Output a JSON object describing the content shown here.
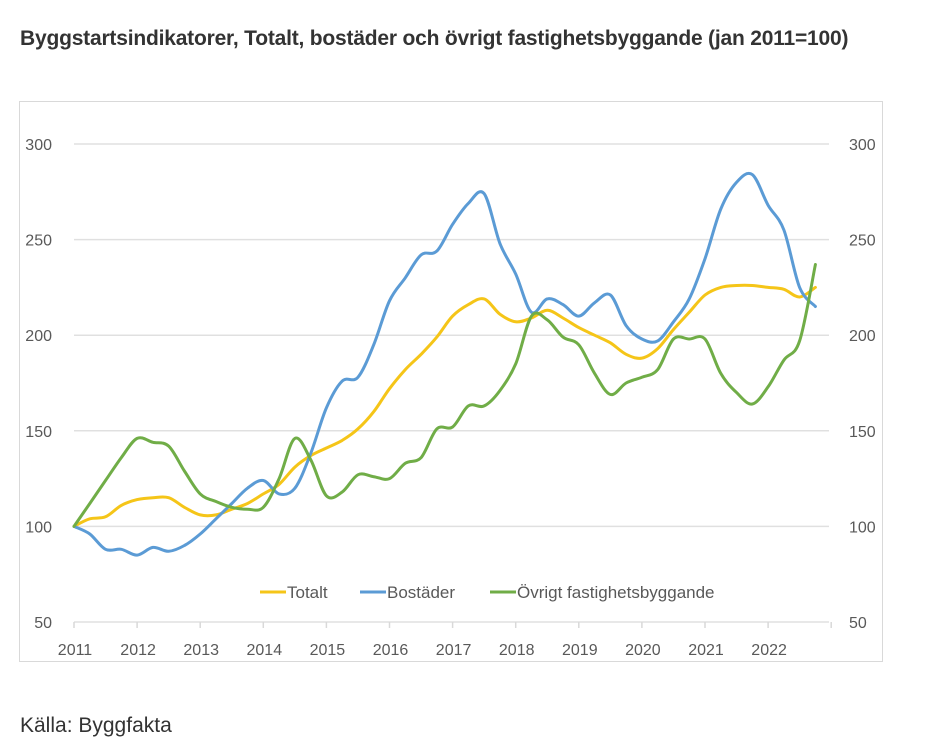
{
  "page": {
    "title": "Byggstartsindikatorer, Totalt, bostäder och övrigt fastighetsbyggande (jan 2011=100)",
    "source": "Källa: Byggfakta"
  },
  "chart_data": {
    "type": "line",
    "title": "Byggstartsindikatorer, Totalt, bostäder och övrigt fastighetsbyggande (jan 2011=100)",
    "xlabel": "",
    "ylabel": "",
    "x_tick_labels": [
      "2011",
      "2012",
      "2013",
      "2014",
      "2015",
      "2016",
      "2017",
      "2018",
      "2019",
      "2020",
      "2021",
      "2022"
    ],
    "y_tick_labels_left": [
      "50",
      "100",
      "150",
      "200",
      "250",
      "300"
    ],
    "y_tick_labels_right": [
      "50",
      "100",
      "150",
      "200",
      "250",
      "300"
    ],
    "y_ticks": [
      50,
      100,
      150,
      200,
      250,
      300
    ],
    "xlim": [
      2011,
      2023
    ],
    "ylim": [
      50,
      300
    ],
    "grid": true,
    "legend_position": "bottom-inside",
    "x": [
      2011.0,
      2011.25,
      2011.5,
      2011.75,
      2012.0,
      2012.25,
      2012.5,
      2012.75,
      2013.0,
      2013.25,
      2013.5,
      2013.75,
      2014.0,
      2014.25,
      2014.5,
      2014.75,
      2015.0,
      2015.25,
      2015.5,
      2015.75,
      2016.0,
      2016.25,
      2016.5,
      2016.75,
      2017.0,
      2017.25,
      2017.5,
      2017.75,
      2018.0,
      2018.25,
      2018.5,
      2018.75,
      2019.0,
      2019.25,
      2019.5,
      2019.75,
      2020.0,
      2020.25,
      2020.5,
      2020.75,
      2021.0,
      2021.25,
      2021.5,
      2021.75,
      2022.0,
      2022.25,
      2022.5,
      2022.75
    ],
    "series": [
      {
        "name": "Totalt",
        "color": "#F5C518",
        "values": [
          100,
          104,
          105,
          111,
          114,
          115,
          115,
          110,
          106,
          106,
          109,
          112,
          117,
          122,
          131,
          137,
          141,
          145,
          151,
          160,
          172,
          182,
          190,
          199,
          210,
          216,
          219,
          211,
          207,
          209,
          213,
          209,
          204,
          200,
          196,
          190,
          188,
          193,
          203,
          212,
          221,
          225,
          226,
          226,
          225,
          224,
          220,
          225
        ]
      },
      {
        "name": "Bostäder",
        "color": "#5B9BD5",
        "values": [
          100,
          96,
          88,
          88,
          85,
          89,
          87,
          90,
          96,
          104,
          112,
          120,
          124,
          117,
          120,
          138,
          162,
          176,
          178,
          195,
          218,
          230,
          242,
          244,
          258,
          269,
          274,
          248,
          232,
          212,
          219,
          216,
          210,
          217,
          221,
          205,
          198,
          197,
          207,
          219,
          240,
          266,
          280,
          284,
          268,
          255,
          225,
          215
        ]
      },
      {
        "name": "Övrigt fastighetsbyggande",
        "color": "#70AD47",
        "values": [
          100,
          112,
          124,
          136,
          146,
          144,
          142,
          129,
          117,
          113,
          110,
          109,
          110,
          125,
          146,
          135,
          116,
          118,
          127,
          126,
          125,
          133,
          136,
          151,
          152,
          163,
          163,
          171,
          185,
          210,
          208,
          199,
          195,
          180,
          169,
          175,
          178,
          182,
          198,
          198,
          198,
          180,
          170,
          164,
          173,
          187,
          197,
          237
        ]
      }
    ]
  },
  "colors": {
    "grid": "#e0e0e0",
    "axis": "#d9d9d9",
    "text": "#595959",
    "title": "#333333"
  }
}
